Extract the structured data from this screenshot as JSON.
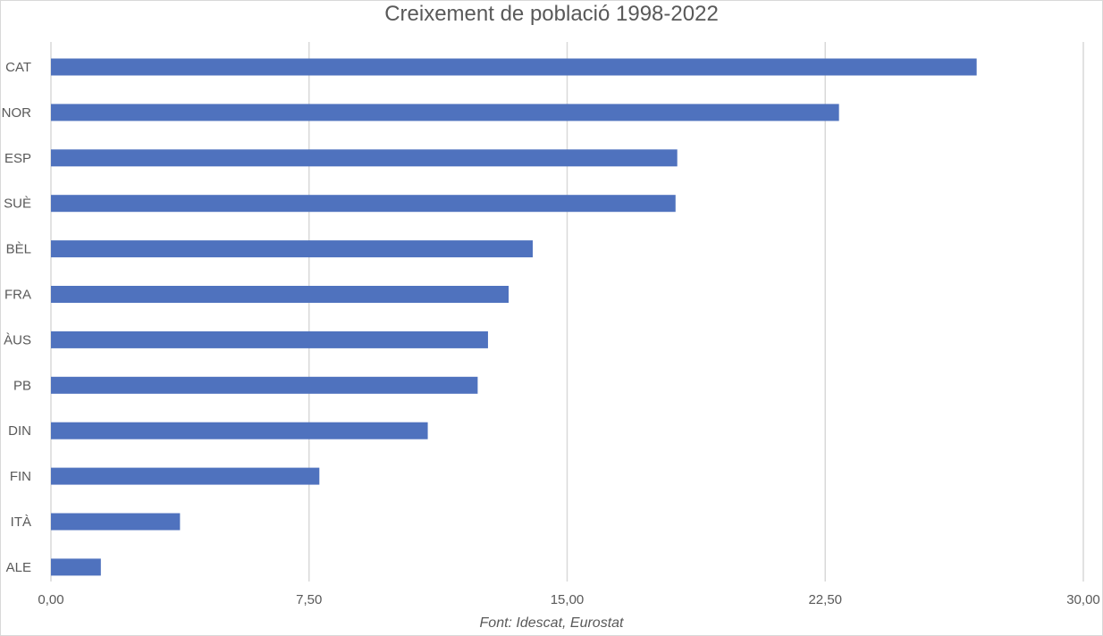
{
  "chart_data": {
    "type": "bar",
    "orientation": "horizontal",
    "title": "Creixement de població 1998-2022",
    "source": "Font: Idescat, Eurostat",
    "categories": [
      "CAT",
      "NOR",
      "ESP",
      "SUÈ",
      "BÈL",
      "FRA",
      "ÀUS",
      "PB",
      "DIN",
      "FIN",
      "ITÀ",
      "ALE"
    ],
    "values": [
      26.9,
      22.9,
      18.2,
      18.15,
      14.0,
      13.3,
      12.7,
      12.4,
      10.95,
      7.8,
      3.75,
      1.45
    ],
    "xlim": [
      0,
      30
    ],
    "xticks": [
      0,
      7.5,
      15,
      22.5,
      30
    ],
    "xtick_labels": [
      "0,00",
      "7,50",
      "15,00",
      "22,50",
      "30,00"
    ],
    "grid": true,
    "legend": "none",
    "bar_color": "#4f72be",
    "grid_color": "#d9d9d9",
    "text_color": "#595959"
  }
}
